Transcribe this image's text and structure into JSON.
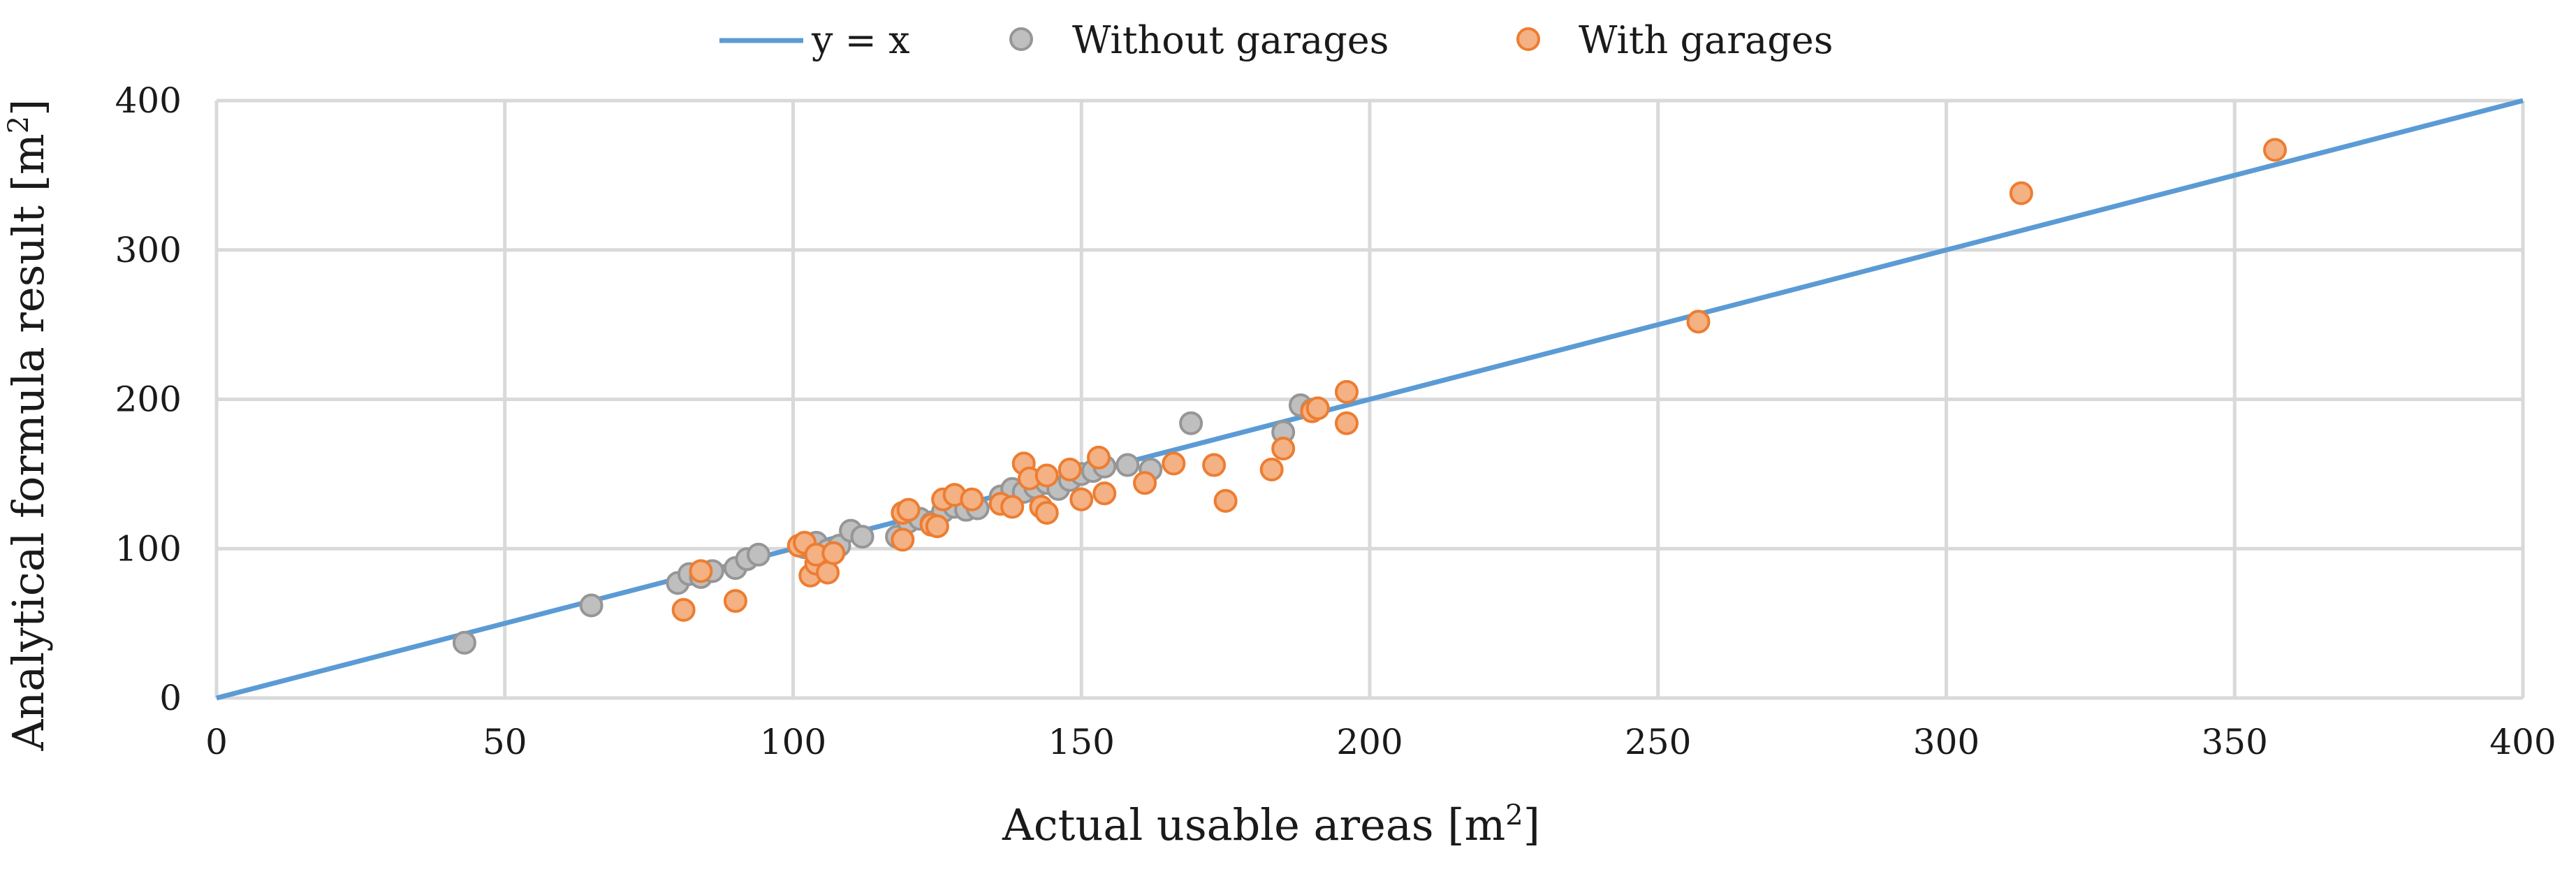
{
  "chart_data": {
    "type": "scatter",
    "title": "",
    "xlabel": "Actual usable areas [m",
    "xlabel_sup": "2",
    "xlabel_end": "]",
    "ylabel": "Analytical formula result [m",
    "ylabel_sup": "2",
    "ylabel_end": "]",
    "xlim": [
      0,
      400
    ],
    "ylim": [
      0,
      400
    ],
    "xticks": [
      0,
      50,
      100,
      150,
      200,
      250,
      300,
      350,
      400
    ],
    "yticks": [
      0,
      100,
      200,
      300,
      400
    ],
    "grid": true,
    "legend_position": "top",
    "series": [
      {
        "name": "y = x",
        "kind": "line",
        "color": "#5b9bd5",
        "points": [
          [
            0,
            0
          ],
          [
            400,
            400
          ]
        ]
      },
      {
        "name": "Without garages",
        "kind": "scatter",
        "color": "#bfbfbf",
        "edge": "#969696",
        "points": [
          [
            43,
            37
          ],
          [
            65,
            62
          ],
          [
            80,
            77
          ],
          [
            82,
            83
          ],
          [
            84,
            81
          ],
          [
            86,
            85
          ],
          [
            90,
            87
          ],
          [
            92,
            93
          ],
          [
            94,
            96
          ],
          [
            102,
            101
          ],
          [
            104,
            104
          ],
          [
            106,
            99
          ],
          [
            108,
            102
          ],
          [
            110,
            112
          ],
          [
            112,
            108
          ],
          [
            118,
            108
          ],
          [
            120,
            118
          ],
          [
            122,
            120
          ],
          [
            124,
            117
          ],
          [
            126,
            125
          ],
          [
            128,
            128
          ],
          [
            130,
            126
          ],
          [
            132,
            127
          ],
          [
            136,
            135
          ],
          [
            138,
            140
          ],
          [
            140,
            138
          ],
          [
            142,
            141
          ],
          [
            144,
            144
          ],
          [
            146,
            140
          ],
          [
            148,
            146
          ],
          [
            150,
            150
          ],
          [
            152,
            152
          ],
          [
            154,
            155
          ],
          [
            158,
            156
          ],
          [
            162,
            153
          ],
          [
            169,
            184
          ],
          [
            185,
            178
          ],
          [
            188,
            196
          ],
          [
            190,
            193
          ]
        ]
      },
      {
        "name": "With garages",
        "kind": "scatter",
        "color": "#f4b183",
        "edge": "#ed7d31",
        "points": [
          [
            81,
            59
          ],
          [
            84,
            85
          ],
          [
            90,
            65
          ],
          [
            101,
            102
          ],
          [
            102,
            104
          ],
          [
            103,
            82
          ],
          [
            104,
            90
          ],
          [
            104,
            96
          ],
          [
            106,
            84
          ],
          [
            107,
            97
          ],
          [
            119,
            106
          ],
          [
            119,
            124
          ],
          [
            120,
            126
          ],
          [
            124,
            116
          ],
          [
            125,
            115
          ],
          [
            126,
            133
          ],
          [
            128,
            136
          ],
          [
            131,
            133
          ],
          [
            136,
            130
          ],
          [
            138,
            128
          ],
          [
            140,
            157
          ],
          [
            141,
            147
          ],
          [
            143,
            128
          ],
          [
            144,
            149
          ],
          [
            144,
            124
          ],
          [
            148,
            153
          ],
          [
            150,
            133
          ],
          [
            153,
            161
          ],
          [
            154,
            137
          ],
          [
            161,
            144
          ],
          [
            166,
            157
          ],
          [
            173,
            156
          ],
          [
            175,
            132
          ],
          [
            183,
            153
          ],
          [
            185,
            167
          ],
          [
            190,
            192
          ],
          [
            191,
            194
          ],
          [
            196,
            205
          ],
          [
            196,
            184
          ],
          [
            257,
            252
          ],
          [
            313,
            338
          ],
          [
            357,
            367
          ]
        ]
      }
    ]
  }
}
